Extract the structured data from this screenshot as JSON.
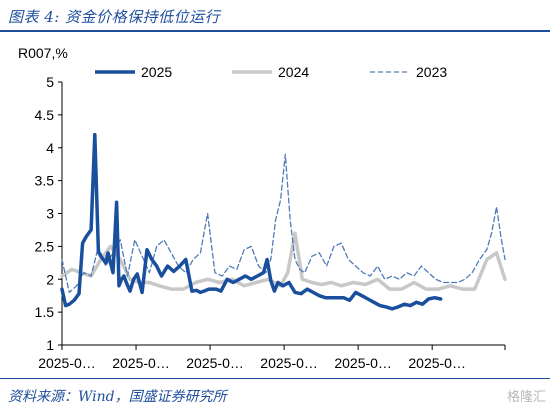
{
  "figure": {
    "title": "图表 4: 资金价格保持低位运行",
    "source": "资料来源：Wind，国盛证券研究所",
    "watermark": "格隆汇"
  },
  "colors": {
    "s2025": "#1a4f9e",
    "s2024": "#c8c8c8",
    "s2023": "#4f7cb8",
    "axis": "#000000",
    "text": "#000000"
  },
  "chart_data": {
    "type": "line",
    "ylabel": "R007,%",
    "ylim": [
      1,
      5
    ],
    "yticks": [
      1,
      1.5,
      2,
      2.5,
      3,
      3.5,
      4,
      4.5,
      5
    ],
    "ytick_labels": [
      "1",
      "1.5",
      "2",
      "2.5",
      "3",
      "3.5",
      "4",
      "4.5",
      "5"
    ],
    "xlim": [
      0,
      365
    ],
    "xticks": [
      0,
      61,
      122,
      183,
      244,
      305,
      365
    ],
    "xtick_labels": [
      "2025-0…",
      "2025-0…",
      "2025-0…",
      "2025-0…",
      "2025-0…",
      "2025-0…",
      ""
    ],
    "grid": false,
    "legend": "top",
    "series": [
      {
        "name": "2025",
        "style": "solid-thick",
        "x": [
          0,
          3,
          6,
          10,
          14,
          17,
          20,
          24,
          27,
          30,
          32,
          34,
          36,
          38,
          42,
          45,
          47,
          49,
          51,
          53,
          56,
          59,
          62,
          66,
          70,
          74,
          78,
          82,
          87,
          92,
          97,
          102,
          107,
          111,
          114,
          117,
          121,
          124,
          127,
          131,
          136,
          141,
          146,
          151,
          156,
          161,
          166,
          169,
          172,
          175,
          178,
          182,
          187,
          192,
          197,
          202,
          207,
          212,
          217,
          222,
          227,
          232,
          237,
          242,
          247,
          252,
          257,
          262,
          267,
          272,
          277,
          282,
          287,
          292,
          297,
          302,
          307,
          312
        ],
        "y": [
          1.85,
          1.6,
          1.62,
          1.68,
          1.78,
          2.55,
          2.65,
          2.75,
          4.2,
          2.42,
          2.35,
          2.3,
          2.25,
          2.4,
          2.1,
          3.17,
          1.9,
          2.0,
          2.05,
          1.95,
          1.82,
          2.0,
          2.08,
          1.8,
          2.45,
          2.3,
          2.2,
          2.05,
          2.2,
          2.12,
          2.2,
          2.3,
          1.82,
          1.83,
          1.8,
          1.82,
          1.85,
          1.85,
          1.85,
          1.82,
          2.0,
          1.95,
          2.0,
          2.05,
          2.0,
          2.05,
          2.1,
          2.3,
          1.98,
          1.82,
          1.95,
          1.9,
          1.95,
          1.8,
          1.78,
          1.85,
          1.8,
          1.75,
          1.72,
          1.72,
          1.72,
          1.72,
          1.68,
          1.8,
          1.75,
          1.7,
          1.65,
          1.6,
          1.58,
          1.55,
          1.58,
          1.62,
          1.6,
          1.65,
          1.62,
          1.7,
          1.72,
          1.7
        ]
      },
      {
        "name": "2024",
        "style": "solid-light",
        "x": [
          0,
          8,
          16,
          24,
          32,
          40,
          48,
          56,
          64,
          72,
          80,
          90,
          100,
          110,
          120,
          130,
          140,
          150,
          160,
          170,
          180,
          186,
          192,
          198,
          206,
          214,
          222,
          230,
          240,
          250,
          260,
          270,
          280,
          290,
          300,
          310,
          320,
          330,
          340,
          350,
          358,
          365
        ],
        "y": [
          2.05,
          2.15,
          2.1,
          2.05,
          2.3,
          2.5,
          2.3,
          2.0,
          1.95,
          1.95,
          1.9,
          1.85,
          1.85,
          1.95,
          2.0,
          1.95,
          2.0,
          1.9,
          1.95,
          2.0,
          1.9,
          2.1,
          2.7,
          2.0,
          1.95,
          1.92,
          1.95,
          1.9,
          1.95,
          1.92,
          2.0,
          1.85,
          1.85,
          1.95,
          1.85,
          1.85,
          1.9,
          1.85,
          1.85,
          2.3,
          2.4,
          2.0
        ]
      },
      {
        "name": "2023",
        "style": "dashed",
        "x": [
          0,
          6,
          12,
          18,
          24,
          30,
          36,
          42,
          48,
          54,
          60,
          66,
          72,
          78,
          84,
          90,
          96,
          102,
          108,
          114,
          120,
          126,
          132,
          138,
          144,
          150,
          156,
          162,
          168,
          172,
          176,
          180,
          184,
          188,
          192,
          196,
          200,
          206,
          212,
          218,
          224,
          230,
          236,
          242,
          248,
          254,
          260,
          266,
          272,
          278,
          284,
          290,
          296,
          302,
          308,
          314,
          320,
          326,
          332,
          338,
          344,
          350,
          354,
          358,
          362,
          365
        ],
        "y": [
          2.3,
          1.8,
          1.9,
          2.1,
          2.05,
          2.5,
          2.2,
          2.4,
          2.6,
          2.05,
          2.6,
          2.35,
          2.1,
          2.5,
          2.6,
          2.4,
          2.2,
          2.1,
          2.3,
          2.4,
          3.0,
          2.1,
          2.05,
          2.2,
          2.15,
          2.45,
          2.5,
          2.2,
          2.1,
          2.3,
          2.9,
          3.2,
          3.9,
          2.9,
          2.3,
          2.15,
          2.1,
          2.35,
          2.4,
          2.2,
          2.5,
          2.55,
          2.3,
          2.2,
          2.1,
          2.05,
          2.2,
          2.0,
          2.05,
          2.0,
          2.1,
          2.05,
          2.2,
          2.1,
          2.0,
          1.95,
          1.95,
          1.95,
          2.0,
          2.1,
          2.3,
          2.45,
          2.7,
          3.1,
          2.6,
          2.3
        ]
      }
    ]
  }
}
